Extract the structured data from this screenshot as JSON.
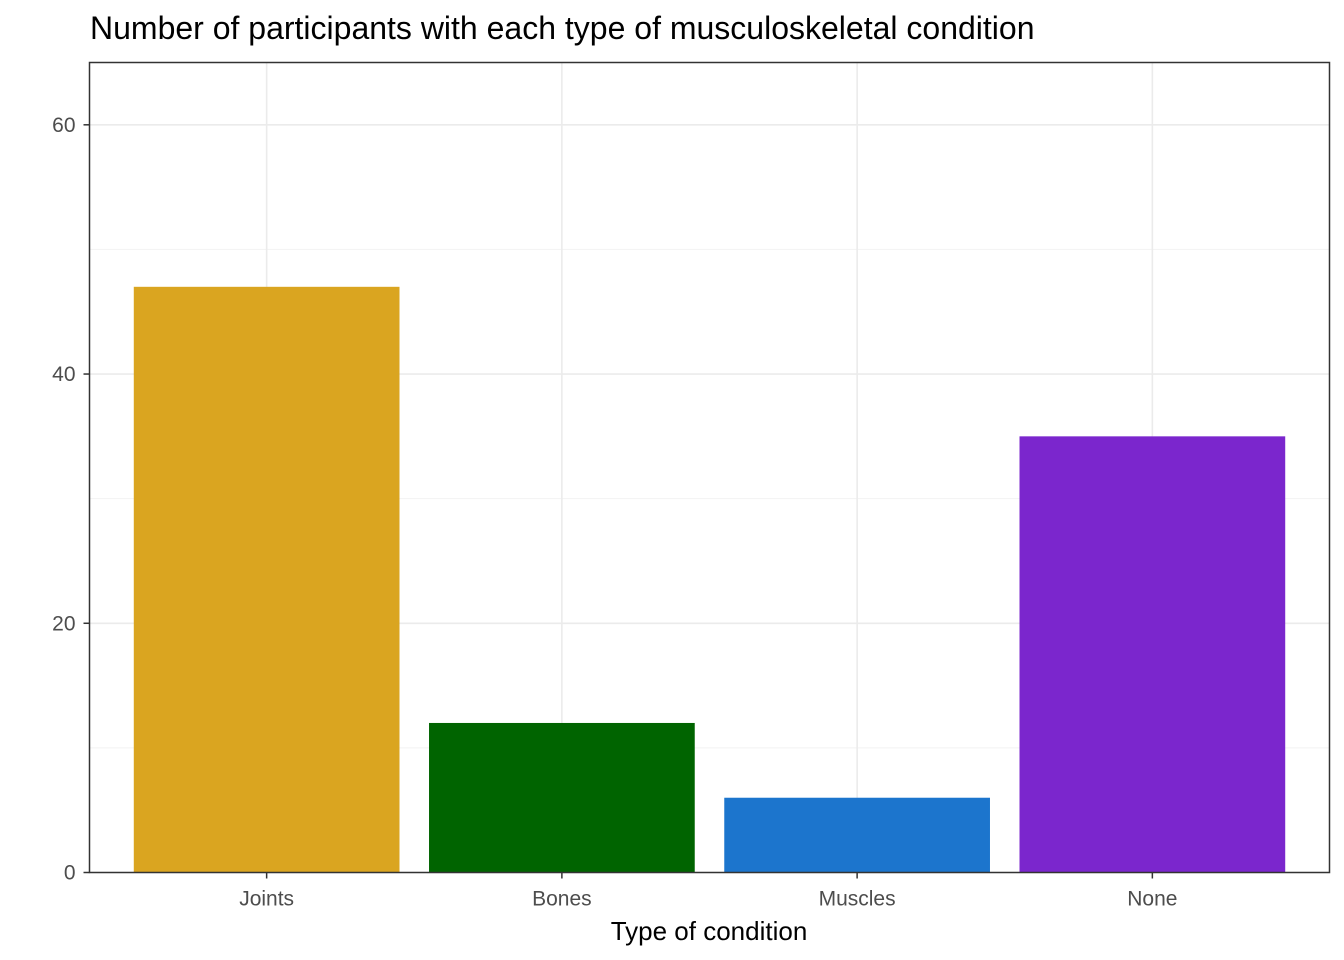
{
  "chart_data": {
    "type": "bar",
    "title": "Number of participants with each type of musculoskeletal condition",
    "xlabel": "Type of condition",
    "ylabel": "",
    "categories": [
      "Joints",
      "Bones",
      "Muscles",
      "None"
    ],
    "values": [
      47,
      12,
      6,
      35
    ],
    "colors": [
      "#DAA520",
      "#006400",
      "#1C75CD",
      "#7B26CD"
    ],
    "ylim": [
      0,
      65
    ],
    "yticks": [
      0,
      20,
      40,
      60
    ],
    "ytick_labels": [
      "0",
      "20",
      "40",
      "60"
    ],
    "grid": true,
    "legend": "none"
  }
}
